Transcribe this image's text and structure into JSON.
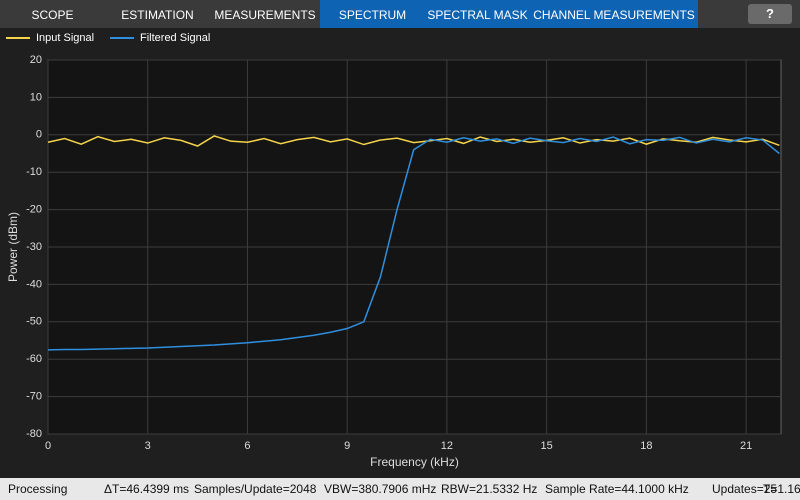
{
  "toolbar": {
    "tabs": [
      "SCOPE",
      "ESTIMATION",
      "MEASUREMENTS",
      "SPECTRUM",
      "SPECTRAL MASK",
      "CHANNEL MEASUREMENTS"
    ],
    "help": "?"
  },
  "status_bar": {
    "state": "Processing",
    "items": [
      "ΔT=46.4399 ms",
      "Samples/Update=2048",
      "VBW=380.7906 mHz",
      "RBW=21.5332 Hz",
      "Sample Rate=44.1000 kHz",
      "Updates=25",
      "T=1.16"
    ]
  },
  "chart_data": {
    "type": "line",
    "x_label": "Frequency (kHz)",
    "y_label": "Power (dBm)",
    "xlim": [
      0,
      22.05
    ],
    "ylim": [
      -80,
      20
    ],
    "xticks": [
      0,
      3,
      6,
      9,
      12,
      15,
      18,
      21
    ],
    "yticks": [
      -80,
      -70,
      -60,
      -50,
      -40,
      -30,
      -20,
      -10,
      0,
      10,
      20
    ],
    "grid": true,
    "legend": "top-left",
    "x": [
      0,
      0.5,
      1,
      1.5,
      2,
      2.5,
      3,
      3.5,
      4,
      4.5,
      5,
      5.5,
      6,
      6.5,
      7,
      7.5,
      8,
      8.5,
      9,
      9.5,
      10,
      10.5,
      11,
      11.5,
      12,
      12.5,
      13,
      13.5,
      14,
      14.5,
      15,
      15.5,
      16,
      16.5,
      17,
      17.5,
      18,
      18.5,
      19,
      19.5,
      20,
      20.5,
      21,
      21.5,
      22
    ],
    "series": [
      {
        "name": "Input Signal",
        "color": "#f5d44b",
        "values": [
          -2,
          -1,
          -2.5,
          -0.5,
          -1.8,
          -1.2,
          -2.2,
          -0.8,
          -1.5,
          -3,
          -0.3,
          -1.7,
          -2,
          -1,
          -2.4,
          -1.3,
          -0.7,
          -1.9,
          -1.1,
          -2.6,
          -1.4,
          -0.9,
          -2.1,
          -1.6,
          -1,
          -2.3,
          -0.6,
          -1.8,
          -1.2,
          -2,
          -1.5,
          -0.8,
          -2.2,
          -1.3,
          -1.7,
          -0.9,
          -2.5,
          -1.1,
          -1.6,
          -2,
          -0.7,
          -1.4,
          -1.9,
          -1.2,
          -2.8
        ]
      },
      {
        "name": "Filtered Signal",
        "color": "#2f8fde",
        "values": [
          -57.5,
          -57.4,
          -57.4,
          -57.3,
          -57.2,
          -57.1,
          -57,
          -56.8,
          -56.6,
          -56.4,
          -56.2,
          -55.9,
          -55.6,
          -55.2,
          -54.8,
          -54.2,
          -53.6,
          -52.8,
          -51.8,
          -50,
          -38,
          -20,
          -4,
          -1.2,
          -2,
          -0.8,
          -1.7,
          -1.1,
          -2.3,
          -0.9,
          -1.6,
          -2.1,
          -1,
          -1.8,
          -0.6,
          -2.4,
          -1.3,
          -1.5,
          -0.7,
          -2.2,
          -1.2,
          -1.9,
          -0.8,
          -1.4,
          -5
        ]
      }
    ]
  }
}
